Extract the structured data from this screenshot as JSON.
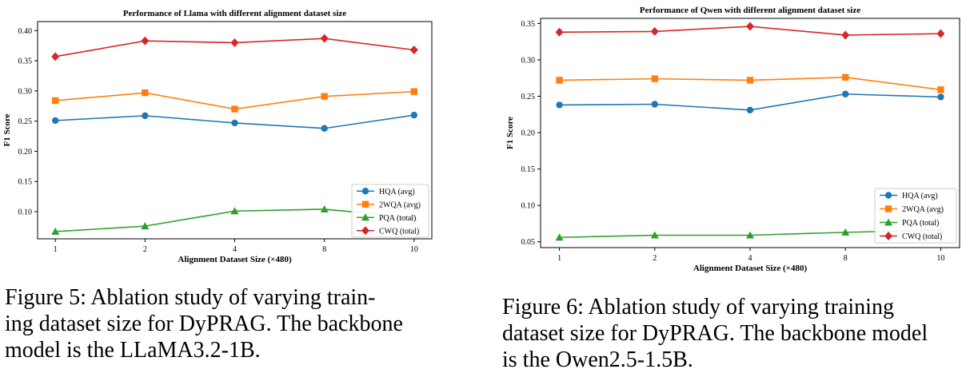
{
  "figures": [
    {
      "caption": {
        "label": "Figure 5:",
        "lines": [
          "Figure 5:  Ablation study of varying train-",
          "ing dataset size for DyPRAG. The backbone",
          "model is the LLaMA3.2-1B."
        ]
      }
    },
    {
      "caption": {
        "label": "Figure 6:",
        "lines": [
          "Figure 6:  Ablation study of varying training",
          "dataset size for DyPRAG. The backbone model",
          "is the Owen2.5-1.5B."
        ]
      }
    }
  ],
  "chart_data": [
    {
      "type": "line",
      "title": "Performance of Llama with different alignment dataset size",
      "xlabel": "Alignment Dataset Size (×480)",
      "ylabel": "F1 Score",
      "categories": [
        "1",
        "2",
        "4",
        "8",
        "10"
      ],
      "ylim": [
        0.055,
        0.415
      ],
      "yticks": [
        "0.10",
        "0.15",
        "0.20",
        "0.25",
        "0.30",
        "0.35",
        "0.40"
      ],
      "grid": false,
      "legend": "lower right",
      "series": [
        {
          "name": "HQA (avg)",
          "color": "#1f77b4",
          "marker": "circle",
          "values": [
            0.251,
            0.259,
            0.247,
            0.238,
            0.26
          ]
        },
        {
          "name": "2WQA (avg)",
          "color": "#ff7f0e",
          "marker": "square",
          "values": [
            0.284,
            0.297,
            0.27,
            0.291,
            0.299
          ]
        },
        {
          "name": "PQA (total)",
          "color": "#2ca02c",
          "marker": "triangle",
          "values": [
            0.067,
            0.076,
            0.101,
            0.104,
            0.09
          ]
        },
        {
          "name": "CWQ (total)",
          "color": "#d62728",
          "marker": "diamond",
          "values": [
            0.357,
            0.383,
            0.38,
            0.387,
            0.368
          ]
        }
      ]
    },
    {
      "type": "line",
      "title": "Performance of Qwen with different alignment dataset size",
      "xlabel": "Alignment Dataset Size (×480)",
      "ylabel": "F1 Score",
      "categories": [
        "1",
        "2",
        "4",
        "8",
        "10"
      ],
      "ylim": [
        0.042,
        0.357
      ],
      "yticks": [
        "0.05",
        "0.10",
        "0.15",
        "0.20",
        "0.25",
        "0.30",
        "0.35"
      ],
      "grid": false,
      "legend": "lower right",
      "series": [
        {
          "name": "HQA (avg)",
          "color": "#1f77b4",
          "marker": "circle",
          "values": [
            0.238,
            0.239,
            0.231,
            0.253,
            0.249
          ]
        },
        {
          "name": "2WQA (avg)",
          "color": "#ff7f0e",
          "marker": "square",
          "values": [
            0.272,
            0.274,
            0.272,
            0.276,
            0.259
          ]
        },
        {
          "name": "PQA (total)",
          "color": "#2ca02c",
          "marker": "triangle",
          "values": [
            0.056,
            0.059,
            0.059,
            0.063,
            0.066
          ]
        },
        {
          "name": "CWQ (total)",
          "color": "#d62728",
          "marker": "diamond",
          "values": [
            0.338,
            0.339,
            0.346,
            0.334,
            0.336
          ]
        }
      ]
    }
  ]
}
